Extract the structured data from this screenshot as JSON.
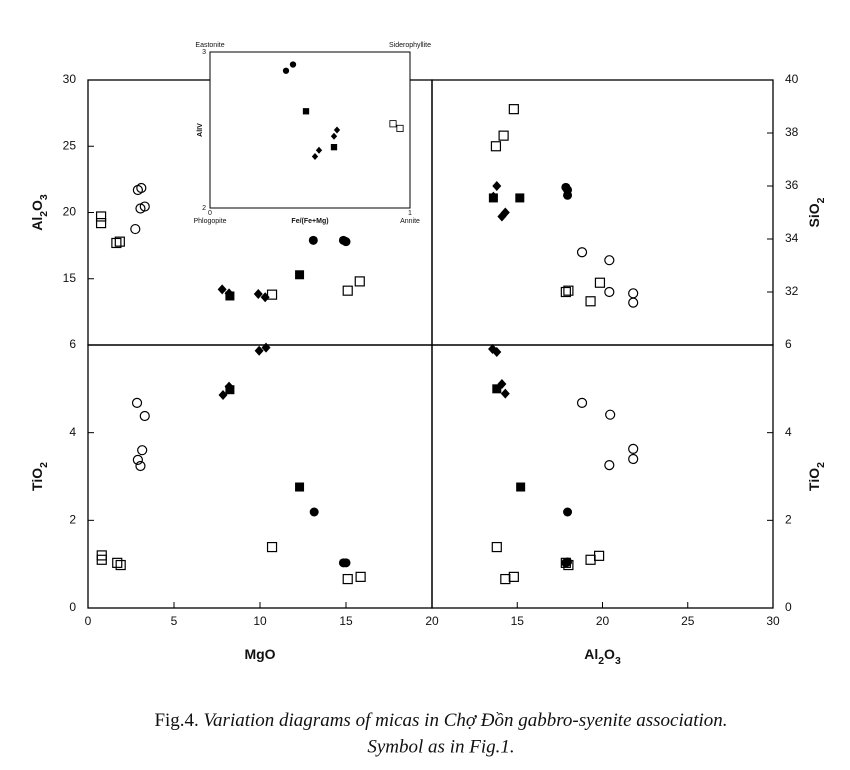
{
  "chart_data": [
    {
      "type": "scatter",
      "ylabel": "Al2O3",
      "xlim": [
        0,
        20
      ],
      "ylim": [
        10,
        30
      ],
      "yticks": [
        15,
        20,
        25,
        30
      ],
      "series": [
        {
          "marker": "open-circle",
          "color": "#000",
          "x": [
            2.75,
            2.9,
            3.1,
            3.05,
            3.3
          ],
          "values": [
            18.75,
            21.7,
            21.85,
            20.3,
            20.45
          ]
        },
        {
          "marker": "open-square",
          "color": "#000",
          "x": [
            0.76,
            0.76,
            1.65,
            1.85,
            10.7,
            15.1,
            15.8
          ],
          "values": [
            19.7,
            19.2,
            17.7,
            17.8,
            13.8,
            14.1,
            14.8
          ]
        },
        {
          "marker": "filled-diamond",
          "color": "#000",
          "x": [
            7.8,
            8.2,
            9.9,
            10.3
          ],
          "values": [
            14.2,
            13.9,
            13.85,
            13.6
          ]
        },
        {
          "marker": "filled-square",
          "color": "#000",
          "x": [
            8.25,
            12.3
          ],
          "values": [
            13.7,
            15.3
          ]
        },
        {
          "marker": "filled-circle",
          "color": "#000",
          "x": [
            13.1,
            14.85,
            15.0
          ],
          "values": [
            17.9,
            17.9,
            17.8
          ]
        }
      ]
    },
    {
      "type": "scatter",
      "ylabel": "SiO2",
      "xlim": [
        10,
        30
      ],
      "ylim": [
        30,
        40
      ],
      "yticks": [
        32,
        34,
        36,
        38,
        40
      ],
      "series": [
        {
          "marker": "open-circle",
          "color": "#000",
          "x": [
            18.8,
            20.4,
            20.4,
            21.8,
            21.8
          ],
          "values": [
            33.5,
            33.2,
            32.0,
            31.95,
            31.6
          ]
        },
        {
          "marker": "open-square",
          "color": "#000",
          "x": [
            13.75,
            14.2,
            14.8,
            17.85,
            18.0,
            19.3,
            19.85
          ],
          "values": [
            37.5,
            37.9,
            38.9,
            32.0,
            32.05,
            31.65,
            32.35
          ]
        },
        {
          "marker": "filled-diamond",
          "color": "#000",
          "x": [
            13.8,
            14.1,
            14.3,
            13.6
          ],
          "values": [
            36.0,
            34.85,
            35.0,
            35.6
          ]
        },
        {
          "marker": "filled-square",
          "color": "#000",
          "x": [
            13.6,
            15.15
          ],
          "values": [
            35.55,
            35.55
          ]
        },
        {
          "marker": "filled-circle",
          "color": "#000",
          "x": [
            17.85,
            17.95,
            17.95
          ],
          "values": [
            35.95,
            35.85,
            35.65
          ]
        }
      ]
    },
    {
      "type": "scatter",
      "xlabel": "MgO",
      "ylabel": "TiO2",
      "xlim": [
        0,
        20
      ],
      "ylim": [
        0,
        6
      ],
      "xticks": [
        0,
        5,
        10,
        15,
        20
      ],
      "yticks": [
        0,
        2,
        4,
        6
      ],
      "series": [
        {
          "marker": "open-circle",
          "color": "#000",
          "x": [
            2.85,
            3.3,
            3.15,
            2.9,
            3.05
          ],
          "values": [
            4.68,
            4.38,
            3.6,
            3.38,
            3.24
          ]
        },
        {
          "marker": "open-square",
          "color": "#000",
          "x": [
            0.8,
            0.8,
            1.7,
            1.9,
            10.7,
            15.1,
            15.85
          ],
          "values": [
            1.2,
            1.1,
            1.03,
            0.98,
            1.39,
            0.66,
            0.71
          ]
        },
        {
          "marker": "filled-diamond",
          "color": "#000",
          "x": [
            7.85,
            8.2,
            9.95,
            10.35
          ],
          "values": [
            4.86,
            5.05,
            5.87,
            5.94
          ]
        },
        {
          "marker": "filled-square",
          "color": "#000",
          "x": [
            8.25,
            12.3
          ],
          "values": [
            4.98,
            2.76
          ]
        },
        {
          "marker": "filled-circle",
          "color": "#000",
          "x": [
            13.15,
            14.85,
            15.0
          ],
          "values": [
            2.19,
            1.03,
            1.03
          ]
        }
      ]
    },
    {
      "type": "scatter",
      "xlabel": "Al2O3",
      "ylabel": "TiO2",
      "xlim": [
        10,
        30
      ],
      "ylim": [
        0,
        6
      ],
      "xticks": [
        15,
        20,
        25,
        30
      ],
      "yticks": [
        0,
        2,
        4,
        6
      ],
      "series": [
        {
          "marker": "open-circle",
          "color": "#000",
          "x": [
            18.8,
            20.45,
            20.4,
            21.8,
            21.8
          ],
          "values": [
            4.68,
            4.41,
            3.26,
            3.4,
            3.63
          ]
        },
        {
          "marker": "open-square",
          "color": "#000",
          "x": [
            13.8,
            14.3,
            14.8,
            17.85,
            18.0,
            19.3,
            19.8
          ],
          "values": [
            1.39,
            0.66,
            0.71,
            1.03,
            0.98,
            1.1,
            1.19
          ]
        },
        {
          "marker": "filled-diamond",
          "color": "#000",
          "x": [
            13.55,
            13.8,
            14.1,
            14.3
          ],
          "values": [
            5.91,
            5.84,
            5.11,
            4.89
          ]
        },
        {
          "marker": "filled-square",
          "color": "#000",
          "x": [
            13.8,
            15.2
          ],
          "values": [
            5.0,
            2.76
          ]
        },
        {
          "marker": "filled-circle",
          "color": "#000",
          "x": [
            17.95,
            17.85,
            17.95
          ],
          "values": [
            2.19,
            1.03,
            1.05
          ]
        }
      ]
    },
    {
      "type": "scatter",
      "xlabel": "Fe/(Fe+Mg)",
      "ylabel": "AlIV",
      "xlim": [
        0,
        1
      ],
      "ylim": [
        2,
        3
      ],
      "xticks": [
        0,
        1
      ],
      "yticks": [
        2,
        3
      ],
      "corner_labels": [
        "Eastonite",
        "Siderophyllite",
        "Phlogopite",
        "Annite"
      ],
      "series": [
        {
          "marker": "open-square",
          "color": "#000",
          "x": [
            0.915,
            0.95
          ],
          "values": [
            2.54,
            2.51
          ]
        },
        {
          "marker": "filled-diamond",
          "color": "#000",
          "x": [
            0.525,
            0.545,
            0.62,
            0.635
          ],
          "values": [
            2.33,
            2.37,
            2.46,
            2.5
          ]
        },
        {
          "marker": "filled-square",
          "color": "#000",
          "x": [
            0.48,
            0.62
          ],
          "values": [
            2.62,
            2.39
          ]
        },
        {
          "marker": "filled-circle",
          "color": "#000",
          "x": [
            0.38,
            0.415
          ],
          "values": [
            2.88,
            2.92
          ]
        }
      ]
    }
  ],
  "caption": {
    "prefix": "Fig.4.",
    "text": "Variation diagrams of micas in Chợ Đồn gabbro-syenite association.",
    "line2": "Symbol as in Fig.1."
  }
}
